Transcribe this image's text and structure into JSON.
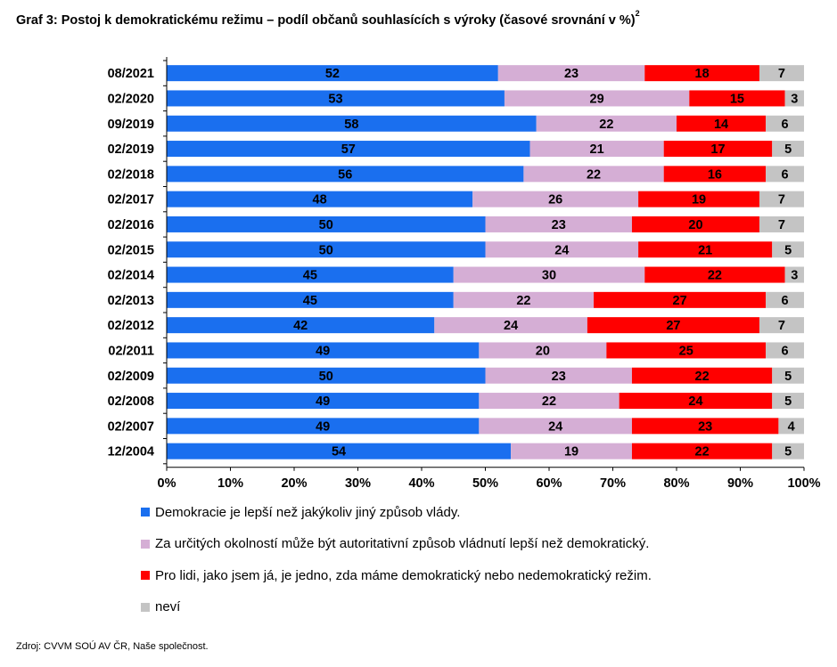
{
  "title": "Graf 3: Postoj k demokratickému režimu – podíl občanů souhlasících s výroky (časové srovnání v %)",
  "title_note": "2",
  "source": "Zdroj: CVVM SOÚ AV ČR, Naše společnost.",
  "colors": {
    "demokracie": "#1a6fef",
    "autoritativni": "#d5aed5",
    "jedno": "#ff0000",
    "nevi": "#c4c4c4"
  },
  "chart_data": {
    "type": "bar",
    "orientation": "horizontal",
    "stacked": "percent",
    "categories": [
      "08/2021",
      "02/2020",
      "09/2019",
      "02/2019",
      "02/2018",
      "02/2017",
      "02/2016",
      "02/2015",
      "02/2014",
      "02/2013",
      "02/2012",
      "02/2011",
      "02/2009",
      "02/2008",
      "02/2007",
      "12/2004"
    ],
    "series": [
      {
        "name": "Demokracie je lepší než jakýkoliv jiný způsob vlády.",
        "color": "#1a6fef",
        "label_color": "#000000",
        "values": [
          52,
          53,
          58,
          57,
          56,
          48,
          50,
          50,
          45,
          45,
          42,
          49,
          50,
          49,
          49,
          54
        ]
      },
      {
        "name": "Za určitých okolností může být autoritativní způsob vládnutí lepší než demokratický.",
        "color": "#d5aed5",
        "label_color": "#000000",
        "values": [
          23,
          29,
          22,
          21,
          22,
          26,
          23,
          24,
          30,
          22,
          24,
          20,
          23,
          22,
          24,
          19
        ]
      },
      {
        "name": "Pro lidi, jako jsem já, je jedno, zda máme demokratický nebo nedemokratický režim.",
        "color": "#ff0000",
        "label_color": "#000000",
        "values": [
          18,
          15,
          14,
          17,
          16,
          19,
          20,
          21,
          22,
          27,
          27,
          25,
          22,
          24,
          23,
          22
        ]
      },
      {
        "name": "neví",
        "color": "#c4c4c4",
        "label_color": "#000000",
        "values": [
          7,
          3,
          6,
          5,
          6,
          7,
          7,
          5,
          3,
          6,
          7,
          6,
          5,
          5,
          4,
          5
        ]
      }
    ],
    "xlim": [
      0,
      100
    ],
    "x_ticks": [
      "0%",
      "10%",
      "20%",
      "30%",
      "40%",
      "50%",
      "60%",
      "70%",
      "80%",
      "90%",
      "100%"
    ],
    "legend_position": "bottom",
    "grid": false
  }
}
